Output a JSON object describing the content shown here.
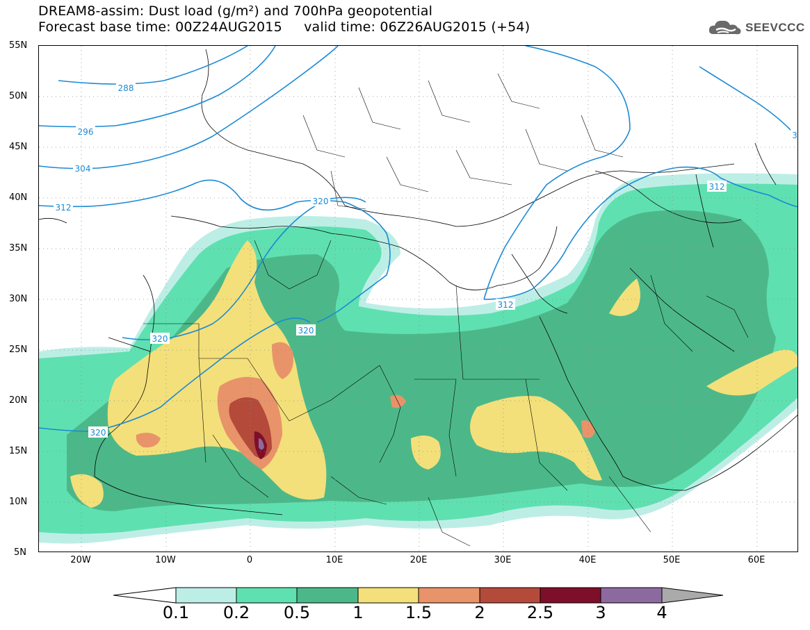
{
  "title": {
    "line1": "DREAM8-assim: Dust load (g/m²) and 700hPa geopotential",
    "line2": "Forecast base time: 00Z24AUG2015     valid time: 06Z26AUG2015 (+54)"
  },
  "logo": {
    "text": "SEEVCCC",
    "icon": "cloud-icon"
  },
  "axes": {
    "lat_labels": [
      "55N",
      "50N",
      "45N",
      "40N",
      "35N",
      "30N",
      "25N",
      "20N",
      "15N",
      "10N",
      "5N"
    ],
    "lon_labels": [
      "20W",
      "10W",
      "0",
      "10E",
      "20E",
      "30E",
      "40E",
      "50E",
      "60E"
    ],
    "lat_range": [
      5,
      55
    ],
    "lon_range": [
      -25,
      65
    ],
    "grid": "dotted"
  },
  "contours": {
    "color": "#1a8ad4",
    "labels": [
      "288",
      "296",
      "304",
      "312",
      "320",
      "320",
      "320",
      "320",
      "312",
      "312",
      "3"
    ]
  },
  "colorbar": {
    "colors": [
      "#bdeee6",
      "#5fe0b0",
      "#4cb889",
      "#f3e07a",
      "#e8936a",
      "#b44a3a",
      "#7e0f2a",
      "#8c6aa0",
      "#aaaaaa"
    ],
    "labels": [
      "0.1",
      "0.2",
      "0.5",
      "1",
      "1.5",
      "2",
      "2.5",
      "3",
      "4"
    ]
  }
}
